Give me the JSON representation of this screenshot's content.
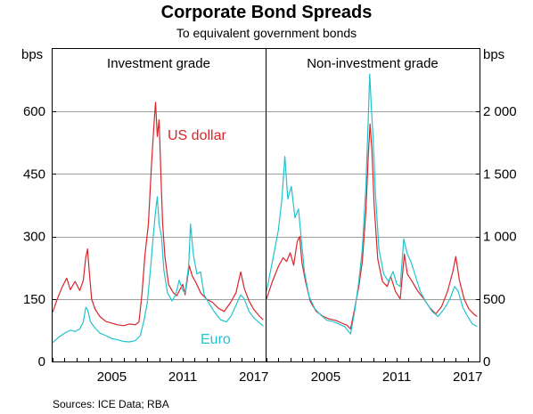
{
  "chart_data": {
    "type": "line",
    "title": "Corporate Bond Spreads",
    "subtitle": "To equivalent government bonds",
    "source": "Sources:  ICE Data; RBA",
    "colors": {
      "us_dollar": "#d7262b",
      "euro": "#22c3cf",
      "grid": "#9e9e9e"
    },
    "left_axis": {
      "unit": "bps",
      "ticks": [
        "0",
        "150",
        "300",
        "450",
        "600"
      ],
      "values": [
        0,
        150,
        300,
        450,
        600
      ],
      "ylim": [
        0,
        750
      ]
    },
    "right_axis": {
      "unit": "bps",
      "ticks": [
        "0",
        "500",
        "1 000",
        "1 500",
        "2 000"
      ],
      "values": [
        0,
        500,
        1000,
        1500,
        2000
      ],
      "ylim": [
        0,
        2500
      ]
    },
    "x_ticks": [
      "2005",
      "2011",
      "2017"
    ],
    "x_tick_values": [
      2005,
      2011,
      2017
    ],
    "xlim": [
      2000,
      2018
    ],
    "panels": [
      {
        "title": "Investment grade",
        "axis": "left",
        "series": [
          {
            "name": "US dollar",
            "color": "#d7262b",
            "points": [
              [
                2000.0,
                118
              ],
              [
                2000.4,
                150
              ],
              [
                2000.8,
                178
              ],
              [
                2001.2,
                200
              ],
              [
                2001.5,
                172
              ],
              [
                2001.9,
                192
              ],
              [
                2002.3,
                170
              ],
              [
                2002.6,
                195
              ],
              [
                2002.8,
                250
              ],
              [
                2002.95,
                270
              ],
              [
                2003.1,
                215
              ],
              [
                2003.3,
                150
              ],
              [
                2003.6,
                125
              ],
              [
                2004.0,
                108
              ],
              [
                2004.5,
                96
              ],
              [
                2005.0,
                92
              ],
              [
                2005.5,
                88
              ],
              [
                2006.0,
                86
              ],
              [
                2006.5,
                90
              ],
              [
                2007.0,
                88
              ],
              [
                2007.3,
                95
              ],
              [
                2007.55,
                160
              ],
              [
                2007.8,
                255
              ],
              [
                2008.1,
                330
              ],
              [
                2008.35,
                470
              ],
              [
                2008.55,
                560
              ],
              [
                2008.7,
                622
              ],
              [
                2008.85,
                540
              ],
              [
                2009.0,
                580
              ],
              [
                2009.15,
                450
              ],
              [
                2009.3,
                330
              ],
              [
                2009.5,
                250
              ],
              [
                2009.8,
                185
              ],
              [
                2010.2,
                165
              ],
              [
                2010.5,
                158
              ],
              [
                2010.8,
                175
              ],
              [
                2011.0,
                185
              ],
              [
                2011.2,
                160
              ],
              [
                2011.55,
                230
              ],
              [
                2011.8,
                205
              ],
              [
                2012.1,
                190
              ],
              [
                2012.5,
                165
              ],
              [
                2013.0,
                150
              ],
              [
                2013.5,
                142
              ],
              [
                2014.0,
                128
              ],
              [
                2014.5,
                120
              ],
              [
                2015.0,
                140
              ],
              [
                2015.5,
                165
              ],
              [
                2015.9,
                215
              ],
              [
                2016.2,
                175
              ],
              [
                2016.6,
                145
              ],
              [
                2017.0,
                125
              ],
              [
                2017.5,
                108
              ],
              [
                2017.8,
                100
              ]
            ]
          },
          {
            "name": "Euro",
            "color": "#22c3cf",
            "points": [
              [
                2000.0,
                45
              ],
              [
                2000.5,
                58
              ],
              [
                2001.0,
                68
              ],
              [
                2001.5,
                75
              ],
              [
                2001.9,
                72
              ],
              [
                2002.3,
                78
              ],
              [
                2002.6,
                95
              ],
              [
                2002.8,
                130
              ],
              [
                2002.95,
                125
              ],
              [
                2003.2,
                95
              ],
              [
                2003.6,
                80
              ],
              [
                2004.0,
                68
              ],
              [
                2004.5,
                62
              ],
              [
                2005.0,
                55
              ],
              [
                2005.5,
                52
              ],
              [
                2006.0,
                48
              ],
              [
                2006.5,
                47
              ],
              [
                2007.0,
                50
              ],
              [
                2007.4,
                62
              ],
              [
                2007.7,
                95
              ],
              [
                2008.0,
                140
              ],
              [
                2008.3,
                230
              ],
              [
                2008.5,
                300
              ],
              [
                2008.7,
                360
              ],
              [
                2008.85,
                395
              ],
              [
                2009.0,
                330
              ],
              [
                2009.2,
                300
              ],
              [
                2009.4,
                220
              ],
              [
                2009.7,
                165
              ],
              [
                2010.1,
                145
              ],
              [
                2010.4,
                160
              ],
              [
                2010.7,
                195
              ],
              [
                2011.0,
                170
              ],
              [
                2011.2,
                165
              ],
              [
                2011.5,
                230
              ],
              [
                2011.65,
                330
              ],
              [
                2011.9,
                255
              ],
              [
                2012.2,
                210
              ],
              [
                2012.5,
                215
              ],
              [
                2012.8,
                160
              ],
              [
                2013.2,
                140
              ],
              [
                2013.7,
                118
              ],
              [
                2014.2,
                100
              ],
              [
                2014.7,
                95
              ],
              [
                2015.1,
                110
              ],
              [
                2015.5,
                135
              ],
              [
                2015.9,
                160
              ],
              [
                2016.2,
                150
              ],
              [
                2016.6,
                120
              ],
              [
                2017.0,
                105
              ],
              [
                2017.5,
                92
              ],
              [
                2017.8,
                85
              ]
            ]
          }
        ]
      },
      {
        "title": "Non-investment grade",
        "axis": "right",
        "series": [
          {
            "name": "US dollar",
            "color": "#d7262b",
            "points": [
              [
                2000.0,
                500
              ],
              [
                2000.5,
                640
              ],
              [
                2001.0,
                760
              ],
              [
                2001.4,
                830
              ],
              [
                2001.7,
                800
              ],
              [
                2002.0,
                870
              ],
              [
                2002.3,
                770
              ],
              [
                2002.6,
                960
              ],
              [
                2002.8,
                1000
              ],
              [
                2003.0,
                790
              ],
              [
                2003.3,
                640
              ],
              [
                2003.7,
                480
              ],
              [
                2004.2,
                400
              ],
              [
                2004.8,
                360
              ],
              [
                2005.3,
                340
              ],
              [
                2005.8,
                330
              ],
              [
                2006.3,
                310
              ],
              [
                2006.8,
                290
              ],
              [
                2007.1,
                260
              ],
              [
                2007.4,
                400
              ],
              [
                2007.8,
                600
              ],
              [
                2008.1,
                800
              ],
              [
                2008.4,
                1200
              ],
              [
                2008.6,
                1650
              ],
              [
                2008.75,
                1900
              ],
              [
                2008.9,
                1700
              ],
              [
                2009.1,
                1250
              ],
              [
                2009.4,
                820
              ],
              [
                2009.8,
                640
              ],
              [
                2010.2,
                600
              ],
              [
                2010.5,
                680
              ],
              [
                2010.9,
                560
              ],
              [
                2011.3,
                500
              ],
              [
                2011.65,
                860
              ],
              [
                2011.9,
                700
              ],
              [
                2012.3,
                640
              ],
              [
                2012.8,
                560
              ],
              [
                2013.3,
                500
              ],
              [
                2013.8,
                430
              ],
              [
                2014.3,
                380
              ],
              [
                2014.8,
                440
              ],
              [
                2015.3,
                560
              ],
              [
                2015.75,
                720
              ],
              [
                2016.0,
                840
              ],
              [
                2016.3,
                650
              ],
              [
                2016.7,
                500
              ],
              [
                2017.1,
                420
              ],
              [
                2017.5,
                380
              ],
              [
                2017.8,
                360
              ]
            ]
          },
          {
            "name": "Euro",
            "color": "#22c3cf",
            "points": [
              [
                2000.0,
                560
              ],
              [
                2000.5,
                800
              ],
              [
                2001.0,
                1050
              ],
              [
                2001.3,
                1300
              ],
              [
                2001.55,
                1640
              ],
              [
                2001.8,
                1300
              ],
              [
                2002.1,
                1400
              ],
              [
                2002.4,
                1150
              ],
              [
                2002.7,
                1220
              ],
              [
                2002.9,
                1020
              ],
              [
                2003.2,
                720
              ],
              [
                2003.6,
                520
              ],
              [
                2004.1,
                420
              ],
              [
                2004.6,
                370
              ],
              [
                2005.1,
                330
              ],
              [
                2005.6,
                320
              ],
              [
                2006.1,
                300
              ],
              [
                2006.6,
                280
              ],
              [
                2007.1,
                220
              ],
              [
                2007.45,
                400
              ],
              [
                2007.8,
                640
              ],
              [
                2008.1,
                900
              ],
              [
                2008.4,
                1400
              ],
              [
                2008.6,
                1950
              ],
              [
                2008.72,
                2300
              ],
              [
                2008.85,
                2050
              ],
              [
                2009.0,
                1800
              ],
              [
                2009.2,
                1350
              ],
              [
                2009.5,
                900
              ],
              [
                2009.9,
                700
              ],
              [
                2010.3,
                640
              ],
              [
                2010.7,
                720
              ],
              [
                2011.0,
                620
              ],
              [
                2011.3,
                600
              ],
              [
                2011.6,
                980
              ],
              [
                2011.9,
                860
              ],
              [
                2012.2,
                800
              ],
              [
                2012.6,
                680
              ],
              [
                2013.0,
                560
              ],
              [
                2013.5,
                470
              ],
              [
                2014.0,
                400
              ],
              [
                2014.5,
                360
              ],
              [
                2015.0,
                420
              ],
              [
                2015.5,
                500
              ],
              [
                2015.9,
                600
              ],
              [
                2016.2,
                560
              ],
              [
                2016.6,
                430
              ],
              [
                2017.0,
                360
              ],
              [
                2017.4,
                300
              ],
              [
                2017.8,
                280
              ]
            ]
          }
        ]
      }
    ],
    "annotations": [
      {
        "text": "US dollar",
        "panel": 0,
        "color": "#d7262b"
      },
      {
        "text": "Euro",
        "panel": 0,
        "color": "#22c3cf"
      }
    ]
  }
}
